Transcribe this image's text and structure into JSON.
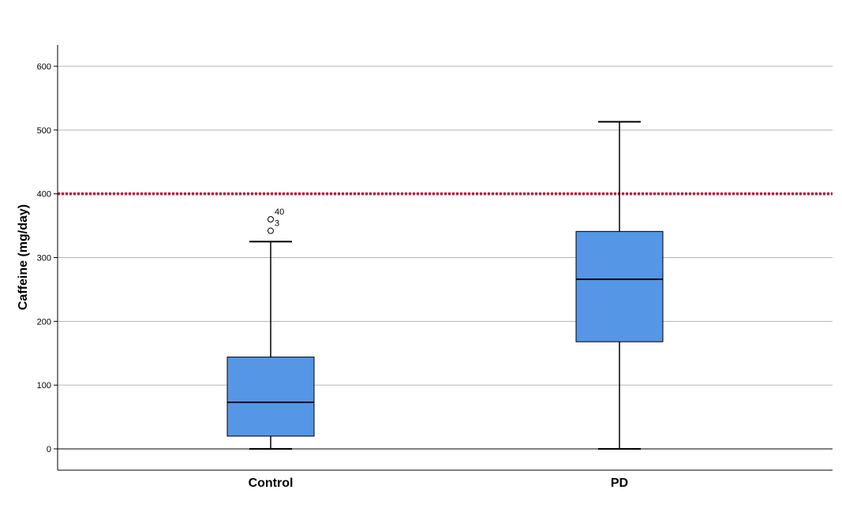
{
  "chart_data": {
    "type": "box",
    "ylabel": "Caffeine (mg/day)",
    "ylim": [
      -33,
      633
    ],
    "yticks": [
      0,
      100,
      200,
      300,
      400,
      500,
      600
    ],
    "grid": true,
    "reference_line": {
      "value": 400,
      "color": "#c0143c",
      "style": "dotted"
    },
    "box_color": "#5596e6",
    "categories": [
      "Control",
      "PD"
    ],
    "boxes": [
      {
        "category": "Control",
        "min": 0,
        "q1": 20,
        "median": 73,
        "q3": 144,
        "max": 325,
        "outliers": [
          {
            "value": 342,
            "label": "3"
          },
          {
            "value": 360,
            "label": "40"
          }
        ]
      },
      {
        "category": "PD",
        "min": 0,
        "q1": 168,
        "median": 266,
        "q3": 341,
        "max": 513,
        "outliers": []
      }
    ]
  }
}
